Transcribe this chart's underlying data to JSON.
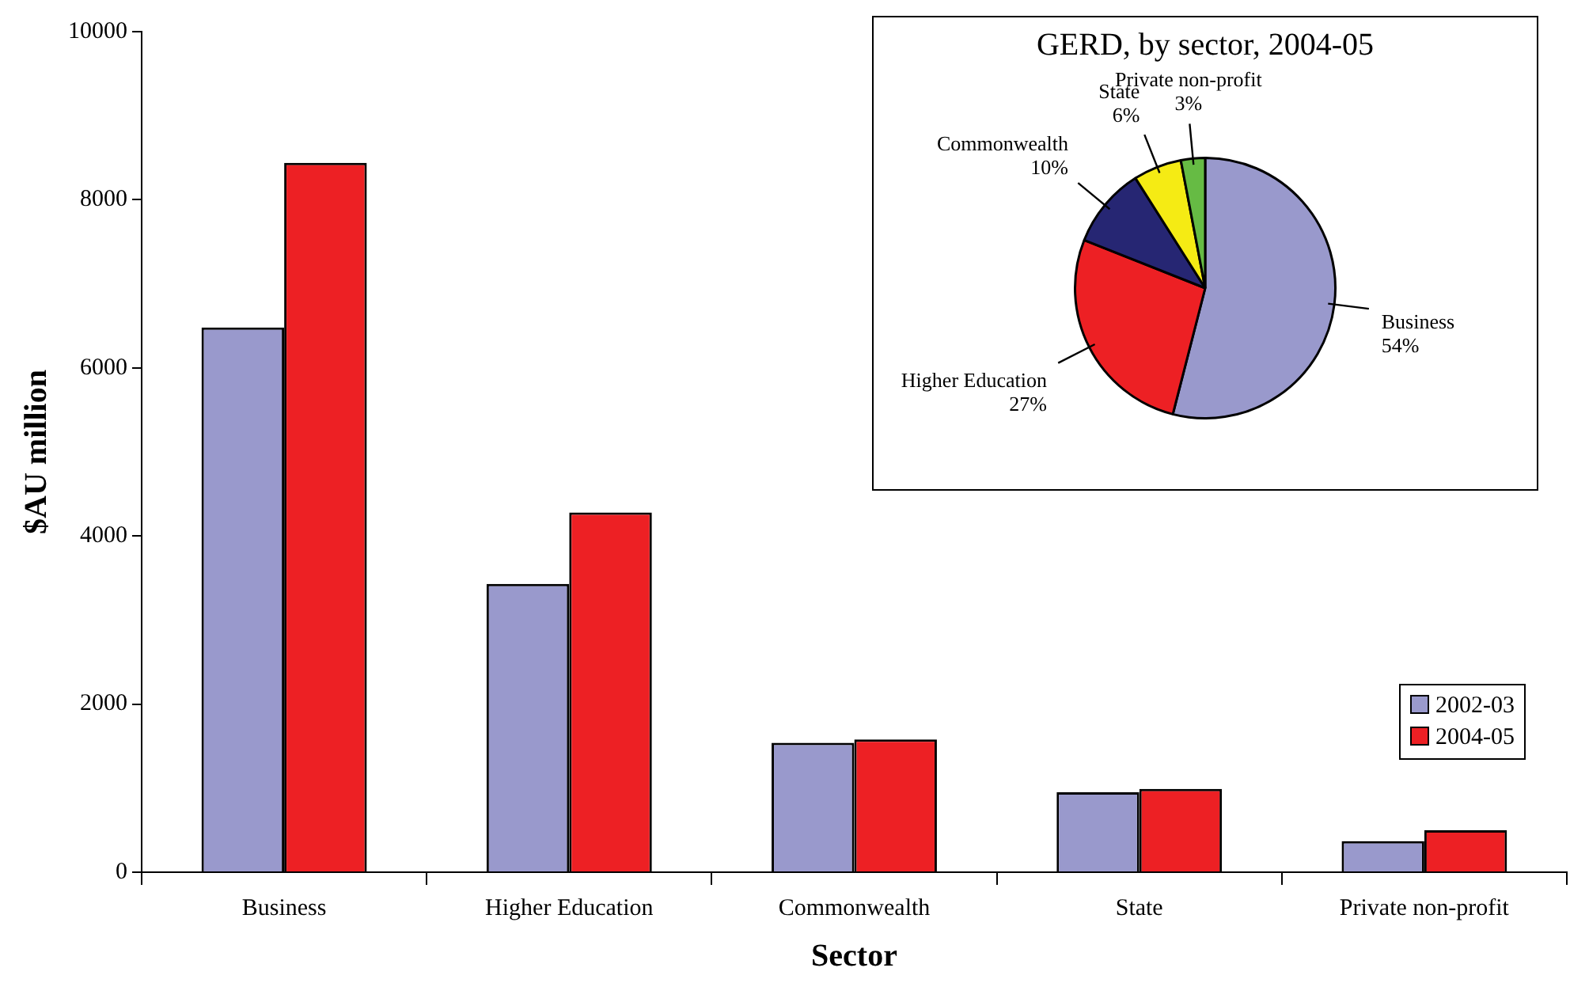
{
  "chart_data": [
    {
      "type": "bar",
      "categories": [
        "Business",
        "Higher Education",
        "Commonwealth",
        "State",
        "Private non-profit"
      ],
      "xlabel": "Sector",
      "ylabel": "$AU million",
      "ylim": [
        0,
        10000
      ],
      "yticks": [
        0,
        2000,
        4000,
        6000,
        8000,
        10000
      ],
      "legend": "right",
      "series": [
        {
          "name": "2002-03",
          "color": "#9999cc",
          "values": [
            6480,
            3430,
            1540,
            950,
            370
          ]
        },
        {
          "name": "2004-05",
          "color": "#ed2024",
          "values": [
            8440,
            4280,
            1580,
            990,
            500
          ]
        }
      ]
    },
    {
      "type": "pie",
      "title": "GERD, by sector, 2004-05",
      "categories": [
        "Business",
        "Higher Education",
        "Commonwealth",
        "State",
        "Private non-profit"
      ],
      "values": [
        54,
        27,
        10,
        6,
        3
      ],
      "colors": [
        "#9999cc",
        "#ed2024",
        "#262673",
        "#f5eb14",
        "#66bb44"
      ],
      "value_labels": [
        "54%",
        "27%",
        "10%",
        "6%",
        "3%"
      ]
    }
  ]
}
